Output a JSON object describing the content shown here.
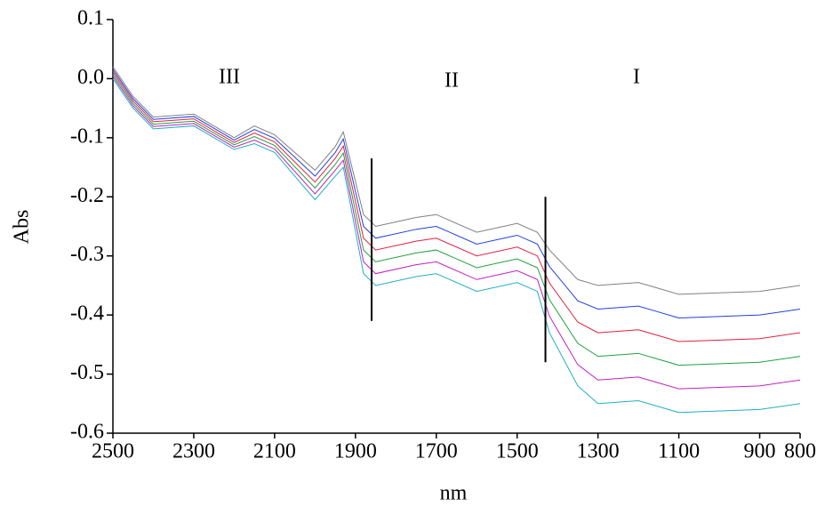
{
  "chart_data": {
    "type": "line",
    "xlabel": "nm",
    "ylabel": "Abs",
    "annotations": [
      "III",
      "II",
      "I"
    ],
    "x": [
      2500,
      2450,
      2400,
      2300,
      2250,
      2200,
      2150,
      2100,
      2000,
      1950,
      1930,
      1880,
      1850,
      1750,
      1700,
      1600,
      1500,
      1450,
      1420,
      1350,
      1300,
      1200,
      1150,
      1100,
      900,
      800
    ],
    "series": [
      {
        "color": "#808080",
        "values": [
          0.02,
          -0.03,
          -0.065,
          -0.06,
          -0.08,
          -0.1,
          -0.08,
          -0.095,
          -0.155,
          -0.115,
          -0.09,
          -0.23,
          -0.25,
          -0.235,
          -0.23,
          -0.26,
          -0.245,
          -0.26,
          -0.29,
          -0.34,
          -0.35,
          -0.345,
          -0.355,
          -0.365,
          -0.36,
          -0.35
        ]
      },
      {
        "color": "#2040e0",
        "values": [
          0.016,
          -0.034,
          -0.069,
          -0.064,
          -0.084,
          -0.104,
          -0.086,
          -0.101,
          -0.165,
          -0.125,
          -0.102,
          -0.25,
          -0.27,
          -0.255,
          -0.25,
          -0.28,
          -0.265,
          -0.28,
          -0.318,
          -0.376,
          -0.39,
          -0.385,
          -0.395,
          -0.405,
          -0.4,
          -0.39
        ]
      },
      {
        "color": "#e02040",
        "values": [
          0.012,
          -0.038,
          -0.073,
          -0.068,
          -0.088,
          -0.108,
          -0.092,
          -0.107,
          -0.175,
          -0.135,
          -0.114,
          -0.27,
          -0.29,
          -0.275,
          -0.27,
          -0.3,
          -0.285,
          -0.3,
          -0.346,
          -0.412,
          -0.43,
          -0.425,
          -0.435,
          -0.445,
          -0.44,
          -0.43
        ]
      },
      {
        "color": "#20a040",
        "values": [
          0.008,
          -0.042,
          -0.077,
          -0.072,
          -0.092,
          -0.112,
          -0.098,
          -0.113,
          -0.185,
          -0.145,
          -0.126,
          -0.29,
          -0.31,
          -0.295,
          -0.29,
          -0.32,
          -0.305,
          -0.32,
          -0.374,
          -0.448,
          -0.47,
          -0.465,
          -0.475,
          -0.485,
          -0.48,
          -0.47
        ]
      },
      {
        "color": "#c020c0",
        "values": [
          0.004,
          -0.046,
          -0.081,
          -0.076,
          -0.096,
          -0.116,
          -0.104,
          -0.119,
          -0.195,
          -0.155,
          -0.138,
          -0.31,
          -0.33,
          -0.315,
          -0.31,
          -0.34,
          -0.325,
          -0.34,
          -0.402,
          -0.484,
          -0.51,
          -0.505,
          -0.515,
          -0.525,
          -0.52,
          -0.51
        ]
      },
      {
        "color": "#20b0c0",
        "values": [
          0,
          -0.05,
          -0.085,
          -0.08,
          -0.1,
          -0.12,
          -0.11,
          -0.125,
          -0.205,
          -0.165,
          -0.15,
          -0.33,
          -0.35,
          -0.335,
          -0.33,
          -0.36,
          -0.345,
          -0.36,
          -0.43,
          -0.52,
          -0.55,
          -0.545,
          -0.555,
          -0.565,
          -0.56,
          -0.55
        ]
      }
    ],
    "dividers": [
      {
        "x": 1860,
        "y": [
          -0.135,
          -0.41
        ]
      },
      {
        "x": 1430,
        "y": [
          -0.2,
          -0.48
        ]
      }
    ],
    "xlim": [
      2500,
      800
    ],
    "xticks": [
      2500,
      2300,
      2100,
      1900,
      1700,
      1500,
      1300,
      1100,
      900,
      800
    ],
    "ylim": [
      -0.6,
      0.1
    ],
    "yticks": [
      -0.6,
      -0.5,
      -0.4,
      -0.3,
      -0.2,
      -0.1,
      {
        "value": 0,
        "label": "0.0"
      },
      0.1
    ],
    "grid": false
  }
}
